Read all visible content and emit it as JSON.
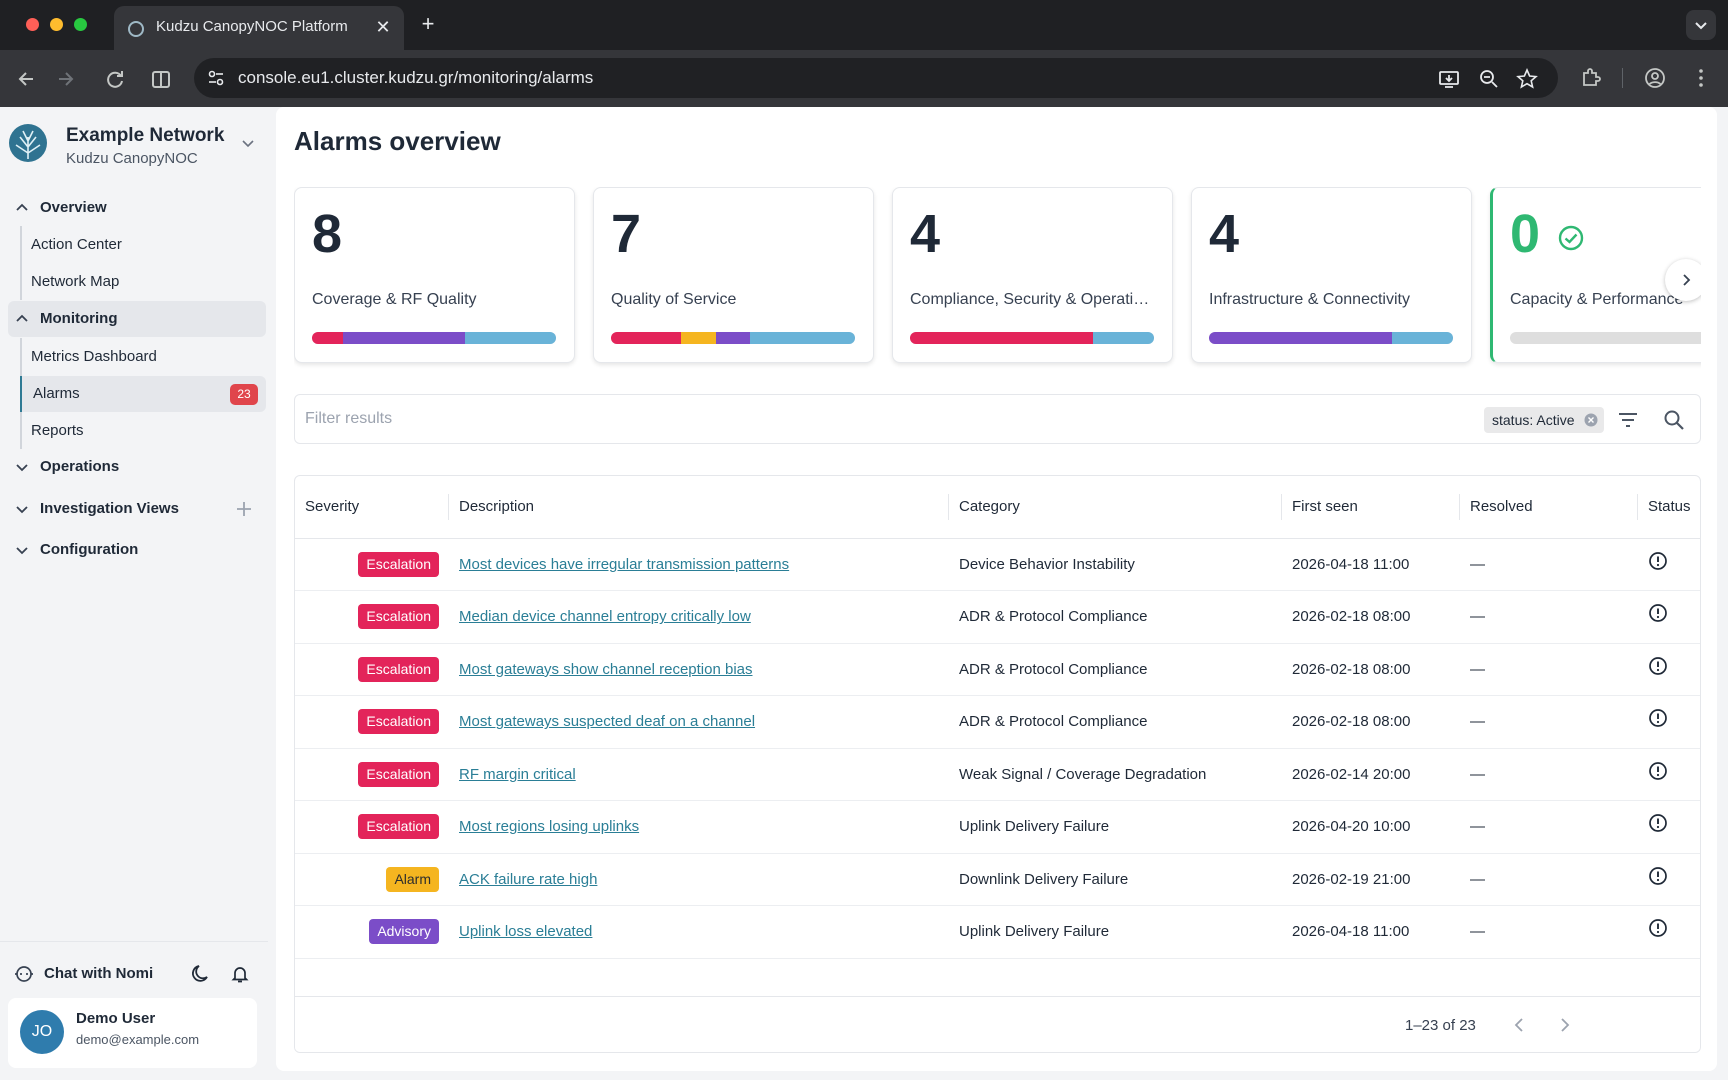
{
  "browser": {
    "tab_title": "Kudzu CanopyNOC Platform",
    "url": "console.eu1.cluster.kudzu.gr/monitoring/alarms"
  },
  "sidebar": {
    "org_name": "Example Network",
    "org_sub": "Kudzu CanopyNOC",
    "sections": [
      {
        "label": "Overview",
        "expanded": true,
        "items": [
          "Action Center",
          "Network Map"
        ]
      },
      {
        "label": "Monitoring",
        "expanded": true,
        "items": [
          "Metrics Dashboard",
          "Alarms",
          "Reports"
        ]
      },
      {
        "label": "Operations",
        "expanded": false
      },
      {
        "label": "Investigation Views",
        "expanded": false
      },
      {
        "label": "Configuration",
        "expanded": false
      }
    ],
    "alarms_badge": "23",
    "chat_label": "Chat with Nomi",
    "user": {
      "initials": "JO",
      "name": "Demo User",
      "email": "demo@example.com"
    }
  },
  "main": {
    "title": "Alarms overview",
    "cards": [
      {
        "count": "8",
        "label": "Coverage & RF Quality",
        "segments": [
          {
            "color": "#e3245a",
            "frac": 0.125
          },
          {
            "color": "#7b4dc8",
            "frac": 0.5
          },
          {
            "color": "#69b3d8",
            "frac": 0.375
          }
        ]
      },
      {
        "count": "7",
        "label": "Quality of Service",
        "segments": [
          {
            "color": "#e3245a",
            "frac": 0.2857
          },
          {
            "color": "#f5b520",
            "frac": 0.1429
          },
          {
            "color": "#7b4dc8",
            "frac": 0.1429
          },
          {
            "color": "#69b3d8",
            "frac": 0.4285
          }
        ]
      },
      {
        "count": "4",
        "label": "Compliance, Security & Operations",
        "segments": [
          {
            "color": "#e3245a",
            "frac": 0.75
          },
          {
            "color": "#69b3d8",
            "frac": 0.25
          }
        ]
      },
      {
        "count": "4",
        "label": "Infrastructure & Connectivity",
        "segments": [
          {
            "color": "#7b4dc8",
            "frac": 0.75
          },
          {
            "color": "#69b3d8",
            "frac": 0.25
          }
        ]
      },
      {
        "count": "0",
        "label": "Capacity & Performance",
        "segments": [],
        "ok": true
      }
    ],
    "filter_placeholder": "Filter results",
    "chip_label": "status: Active",
    "columns": [
      "Severity",
      "Description",
      "Category",
      "First seen",
      "Resolved",
      "Status"
    ],
    "rows": [
      {
        "severity": "Escalation",
        "description": "Most devices have irregular transmission patterns",
        "category": "Device Behavior Instability",
        "first_seen": "2026-04-18 11:00",
        "resolved": "—"
      },
      {
        "severity": "Escalation",
        "description": "Median device channel entropy critically low",
        "category": "ADR & Protocol Compliance",
        "first_seen": "2026-02-18 08:00",
        "resolved": "—"
      },
      {
        "severity": "Escalation",
        "description": "Most gateways show channel reception bias",
        "category": "ADR & Protocol Compliance",
        "first_seen": "2026-02-18 08:00",
        "resolved": "—"
      },
      {
        "severity": "Escalation",
        "description": "Most gateways suspected deaf on a channel",
        "category": "ADR & Protocol Compliance",
        "first_seen": "2026-02-18 08:00",
        "resolved": "—"
      },
      {
        "severity": "Escalation",
        "description": "RF margin critical",
        "category": "Weak Signal / Coverage Degradation",
        "first_seen": "2026-02-14 20:00",
        "resolved": "—"
      },
      {
        "severity": "Escalation",
        "description": "Most regions losing uplinks",
        "category": "Uplink Delivery Failure",
        "first_seen": "2026-04-20 10:00",
        "resolved": "—"
      },
      {
        "severity": "Alarm",
        "description": "ACK failure rate high",
        "category": "Downlink Delivery Failure",
        "first_seen": "2026-02-19 21:00",
        "resolved": "—"
      },
      {
        "severity": "Advisory",
        "description": "Uplink loss elevated",
        "category": "Uplink Delivery Failure",
        "first_seen": "2026-04-18 11:00",
        "resolved": "—"
      }
    ],
    "pager_text": "1–23 of 23"
  },
  "colors": {
    "accent": "#2a7e96",
    "escalation": "#e3245a",
    "alarm": "#f5b520",
    "advisory": "#7b4dc8",
    "ok": "#2fb872",
    "info": "#69b3d8"
  }
}
